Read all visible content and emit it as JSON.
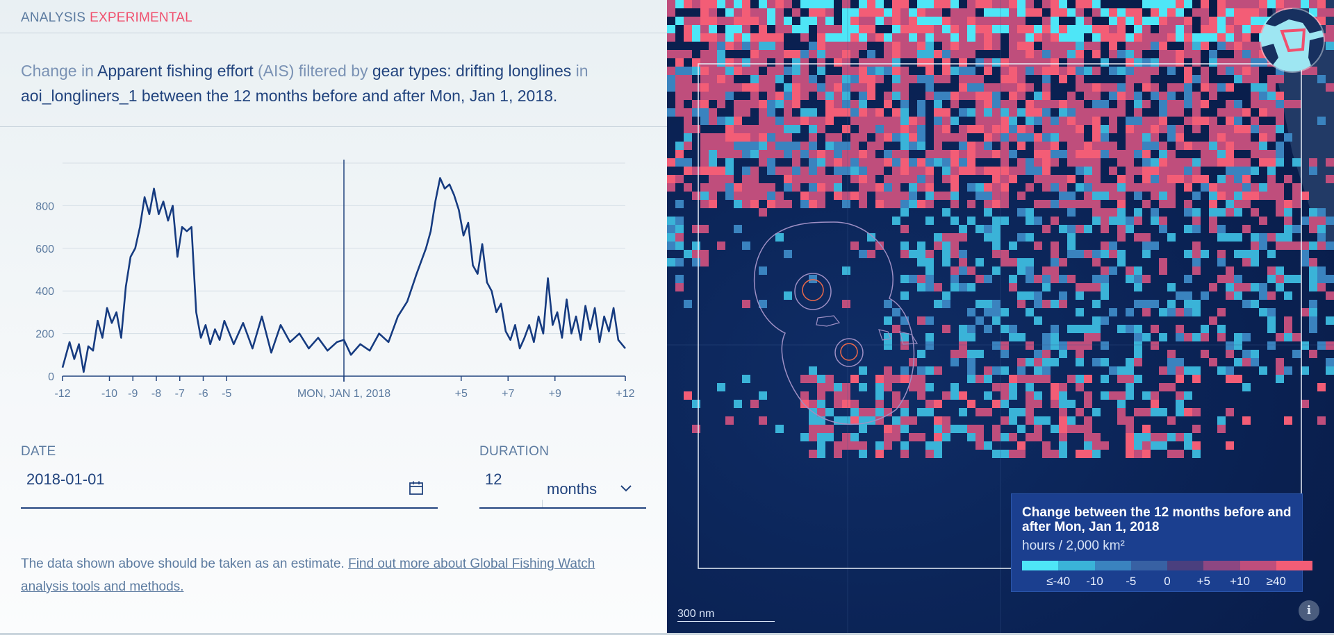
{
  "header": {
    "title": "ANALYSIS",
    "badge": "EXPERIMENTAL"
  },
  "description": {
    "p1": "Change in ",
    "dataset": "Apparent fishing effort",
    "p2": " (AIS) filtered by ",
    "filter": "gear types: drifting longlines",
    "p3": " in ",
    "area_and_period": "aoi_longliners_1 between the 12 months before and after Mon, Jan 1, 2018."
  },
  "chart_data": {
    "type": "line",
    "ylim": [
      0,
      1000
    ],
    "yticks": [
      0,
      200,
      400,
      600,
      800
    ],
    "xlim": [
      -12,
      12
    ],
    "xticks": [
      {
        "value": -12,
        "label": "-12"
      },
      {
        "value": -10,
        "label": "-10"
      },
      {
        "value": -9,
        "label": "-9"
      },
      {
        "value": -8,
        "label": "-8"
      },
      {
        "value": -7,
        "label": "-7"
      },
      {
        "value": -6,
        "label": "-6"
      },
      {
        "value": -5,
        "label": "-5"
      },
      {
        "value": 0,
        "label": "MON, JAN 1, 2018"
      },
      {
        "value": 5,
        "label": "+5"
      },
      {
        "value": 7,
        "label": "+7"
      },
      {
        "value": 9,
        "label": "+9"
      },
      {
        "value": 12,
        "label": "+12"
      }
    ],
    "reference_line_x": 0,
    "grid": true,
    "color": "#163b80",
    "series": [
      {
        "x": [
          -12,
          -11.7,
          -11.5,
          -11.3,
          -11.1,
          -10.9,
          -10.7,
          -10.5,
          -10.3,
          -10.1,
          -9.9,
          -9.7,
          -9.5,
          -9.3,
          -9.1,
          -8.9,
          -8.7,
          -8.5,
          -8.3,
          -8.1,
          -7.9,
          -7.7,
          -7.5,
          -7.3,
          -7.1,
          -6.9,
          -6.7,
          -6.5,
          -6.3,
          -6.1,
          -5.9,
          -5.7,
          -5.5,
          -5.3,
          -5.1,
          -4.7,
          -4.3,
          -3.9,
          -3.5,
          -3.1,
          -2.7,
          -2.3,
          -1.9,
          -1.5,
          -1.1,
          -0.7,
          -0.3,
          0,
          0.3,
          0.7,
          1.1,
          1.5,
          1.9,
          2.3,
          2.7,
          3.1,
          3.5,
          3.7,
          3.9,
          4.1,
          4.3,
          4.5,
          4.7,
          4.9,
          5.1,
          5.3,
          5.5,
          5.7,
          5.9,
          6.1,
          6.3,
          6.5,
          6.7,
          6.9,
          7.1,
          7.3,
          7.5,
          7.7,
          7.9,
          8.1,
          8.3,
          8.5,
          8.7,
          8.9,
          9.1,
          9.3,
          9.5,
          9.7,
          9.9,
          10.1,
          10.3,
          10.5,
          10.7,
          10.9,
          11.1,
          11.3,
          11.5,
          11.7,
          12
        ],
        "values": [
          40,
          160,
          80,
          150,
          20,
          140,
          120,
          260,
          180,
          320,
          250,
          300,
          180,
          420,
          560,
          600,
          700,
          840,
          760,
          880,
          760,
          820,
          730,
          800,
          560,
          700,
          680,
          700,
          300,
          180,
          240,
          150,
          220,
          170,
          260,
          150,
          250,
          130,
          280,
          110,
          240,
          160,
          200,
          130,
          180,
          120,
          160,
          170,
          100,
          150,
          120,
          200,
          160,
          280,
          350,
          480,
          600,
          680,
          820,
          930,
          880,
          900,
          850,
          780,
          660,
          720,
          520,
          480,
          620,
          440,
          400,
          300,
          340,
          210,
          170,
          240,
          130,
          180,
          240,
          160,
          280,
          200,
          460,
          240,
          300,
          180,
          360,
          200,
          280,
          170,
          330,
          220,
          320,
          160,
          280,
          210,
          320,
          170,
          130
        ]
      }
    ]
  },
  "date": {
    "label": "DATE",
    "value": "2018-01-01"
  },
  "duration": {
    "label": "DURATION",
    "value": "12",
    "unit": "months"
  },
  "disclaimer": {
    "text": "The data shown above should be taken as an estimate. ",
    "link": "Find out more about Global Fishing Watch analysis tools and methods."
  },
  "legend": {
    "title": "Change between the 12 months before and after Mon, Jan 1, 2018",
    "unit": "hours / 2,000 km²",
    "colors": [
      "#4ee6f7",
      "#3ab3d8",
      "#3a83bf",
      "#3861a3",
      "#4a3f7e",
      "#8d4782",
      "#bf4e7c",
      "#f35d76"
    ],
    "labels": [
      "≤-40",
      "-10",
      "-5",
      "0",
      "+5",
      "+10",
      "≥40"
    ]
  },
  "scale": {
    "label": "300 nm"
  },
  "info": {
    "label": "i"
  },
  "icons": {
    "calendar": "calendar-icon",
    "chevron": "chevron-down-icon",
    "globe": "globe-icon",
    "info": "info-icon"
  }
}
